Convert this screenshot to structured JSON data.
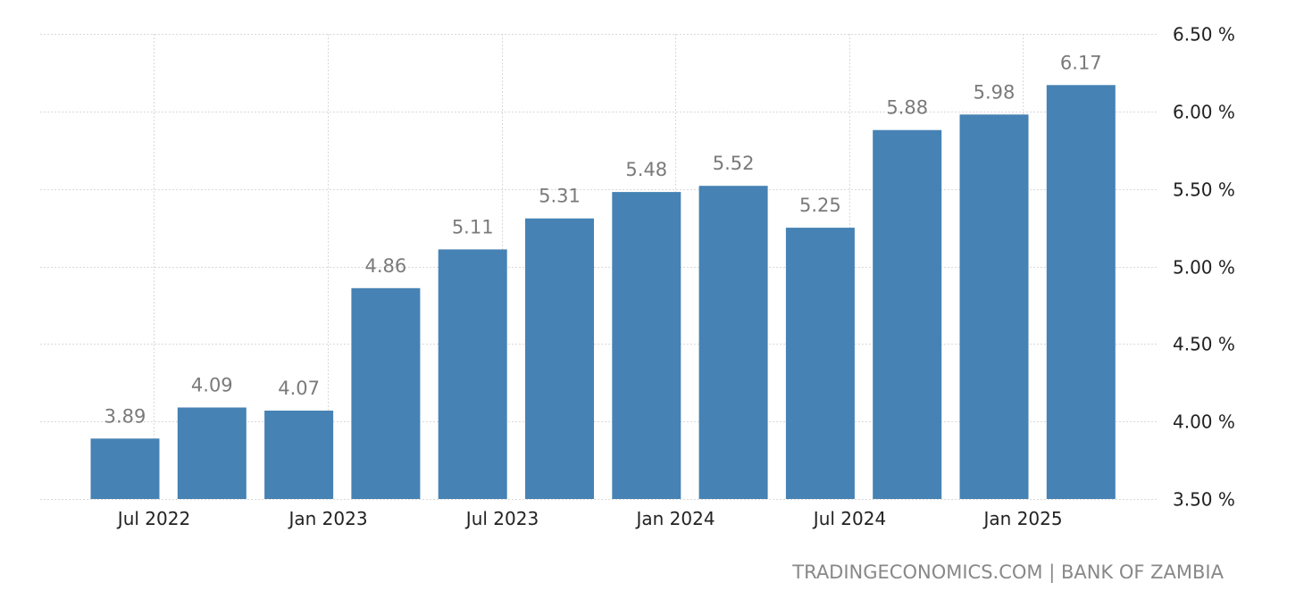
{
  "chart_data": {
    "type": "bar",
    "categories": [
      "2022-06",
      "2022-09",
      "2022-12",
      "2023-03",
      "2023-06",
      "2023-09",
      "2023-12",
      "2024-03",
      "2024-06",
      "2024-09",
      "2024-12",
      "2025-03"
    ],
    "values": [
      3.89,
      4.09,
      4.07,
      4.86,
      5.11,
      5.31,
      5.48,
      5.52,
      5.25,
      5.88,
      5.98,
      6.17
    ],
    "data_labels": [
      "3.89",
      "4.09",
      "4.07",
      "4.86",
      "5.11",
      "5.31",
      "5.48",
      "5.52",
      "5.25",
      "5.88",
      "5.98",
      "6.17"
    ],
    "x_ticks": [
      {
        "label": "Jul 2022",
        "date": "2022-07"
      },
      {
        "label": "Jan 2023",
        "date": "2023-01"
      },
      {
        "label": "Jul 2023",
        "date": "2023-07"
      },
      {
        "label": "Jan 2024",
        "date": "2024-01"
      },
      {
        "label": "Jul 2024",
        "date": "2024-07"
      },
      {
        "label": "Jan 2025",
        "date": "2025-01"
      }
    ],
    "y_ticks": [
      {
        "value": 3.5,
        "label": "3.50 %"
      },
      {
        "value": 4.0,
        "label": "4.00 %"
      },
      {
        "value": 4.5,
        "label": "4.50 %"
      },
      {
        "value": 5.0,
        "label": "5.00 %"
      },
      {
        "value": 5.5,
        "label": "5.50 %"
      },
      {
        "value": 6.0,
        "label": "6.00 %"
      },
      {
        "value": 6.5,
        "label": "6.50 %"
      }
    ],
    "ylim": [
      3.5,
      6.5
    ],
    "y_axis_position": "right",
    "grid": true,
    "legend": "none",
    "bar_color": "#4682b4",
    "title": "",
    "xlabel": "",
    "ylabel": ""
  },
  "source": {
    "text": "TRADINGECONOMICS.COM | BANK OF ZAMBIA"
  }
}
